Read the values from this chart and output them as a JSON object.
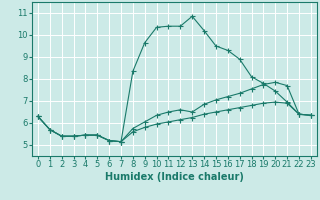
{
  "xlabel": "Humidex (Indice chaleur)",
  "bg_color": "#cceae7",
  "grid_color": "#ffffff",
  "line_color": "#1a7a6a",
  "xlim": [
    -0.5,
    23.5
  ],
  "ylim": [
    4.5,
    11.5
  ],
  "xticks": [
    0,
    1,
    2,
    3,
    4,
    5,
    6,
    7,
    8,
    9,
    10,
    11,
    12,
    13,
    14,
    15,
    16,
    17,
    18,
    19,
    20,
    21,
    22,
    23
  ],
  "yticks": [
    5,
    6,
    7,
    8,
    9,
    10,
    11
  ],
  "series1_y": [
    6.3,
    5.7,
    5.4,
    5.4,
    5.45,
    5.45,
    5.2,
    5.15,
    8.35,
    9.65,
    10.35,
    10.4,
    10.4,
    10.85,
    10.2,
    9.5,
    9.3,
    8.9,
    8.1,
    7.8,
    7.45,
    6.95,
    6.4,
    6.35
  ],
  "series2_y": [
    6.3,
    5.7,
    5.4,
    5.4,
    5.45,
    5.45,
    5.2,
    5.15,
    5.75,
    6.05,
    6.35,
    6.5,
    6.6,
    6.5,
    6.85,
    7.05,
    7.2,
    7.35,
    7.55,
    7.75,
    7.85,
    7.7,
    6.4,
    6.35
  ],
  "series3_y": [
    6.3,
    5.7,
    5.4,
    5.4,
    5.45,
    5.45,
    5.2,
    5.15,
    5.6,
    5.8,
    5.95,
    6.05,
    6.15,
    6.25,
    6.4,
    6.5,
    6.6,
    6.7,
    6.8,
    6.9,
    6.95,
    6.9,
    6.4,
    6.35
  ],
  "xlabel_fontsize": 7,
  "tick_fontsize": 6,
  "lw": 0.8,
  "marker_size": 2.0
}
